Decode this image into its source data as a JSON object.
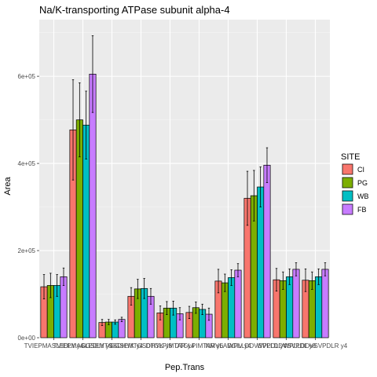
{
  "chart_data": {
    "type": "bar",
    "title": "Na/K-transporting ATPase subunit alpha-4",
    "xlabel": "Pep.Trans",
    "ylabel": "Area",
    "ylim": [
      0,
      730000
    ],
    "yticks": [
      0,
      200000,
      400000,
      600000
    ],
    "ytick_labels": [
      "0e+00",
      "2e+05",
      "4e+05",
      "6e+05"
    ],
    "categories": [
      "TVIEPMASLEDLY y4",
      "TVIEPMASLEDLY y9",
      "GGSEMTGSDHYK y4",
      "GGSEMTGSDHYK y8",
      "DTGLPIMTAR y4",
      "DTGLPIMTAR y6",
      "NMVLADGIV y4",
      "WPLLDDVSVPDL y4",
      "WPLLDDVSVPDL y8",
      "WPLLDDVSVPDLR y4"
    ],
    "series": [
      {
        "name": "CI",
        "color": "#F8766D",
        "values": [
          117000,
          477000,
          35000,
          95000,
          57000,
          58000,
          130000,
          320000,
          133000,
          132000
        ],
        "errors": [
          28000,
          115000,
          7000,
          20000,
          16000,
          14000,
          27000,
          62000,
          26000,
          26000
        ]
      },
      {
        "name": "PG",
        "color": "#7CAE00",
        "values": [
          120000,
          500000,
          36000,
          112000,
          68000,
          69000,
          126000,
          326000,
          131000,
          131000
        ],
        "errors": [
          28000,
          85000,
          6000,
          22000,
          15000,
          13000,
          20000,
          58000,
          20000,
          20000
        ]
      },
      {
        "name": "WB",
        "color": "#00BFC4",
        "values": [
          120000,
          488000,
          36000,
          113000,
          68000,
          65000,
          138000,
          346000,
          140000,
          140000
        ],
        "errors": [
          25000,
          78000,
          5000,
          23000,
          16000,
          12000,
          18000,
          46000,
          18000,
          18000
        ]
      },
      {
        "name": "FB",
        "color": "#C77CFF",
        "values": [
          140000,
          605000,
          42000,
          95000,
          55000,
          54000,
          155000,
          396000,
          157000,
          157000
        ],
        "errors": [
          20000,
          88000,
          5000,
          18000,
          14000,
          14000,
          15000,
          40000,
          15000,
          15000
        ]
      }
    ],
    "legend": {
      "title": "SITE",
      "placement": "right"
    },
    "grid": true
  }
}
